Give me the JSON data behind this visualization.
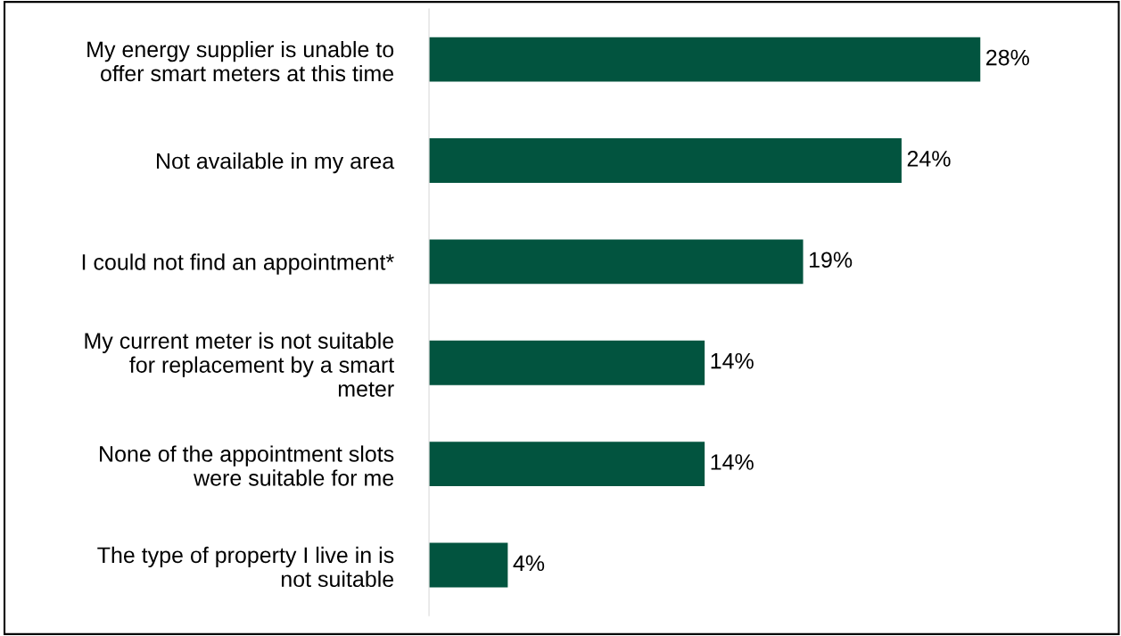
{
  "chart_data": {
    "type": "bar",
    "orientation": "horizontal",
    "categories": [
      "My energy supplier is unable to\noffer smart meters at this time",
      "Not available in my area",
      "I could not find an appointment*",
      "My current meter is not suitable\nfor replacement by a smart\nmeter",
      "None of the appointment slots\nwere suitable for me",
      "The type of property I live in is\nnot suitable"
    ],
    "values": [
      28,
      24,
      19,
      14,
      14,
      4
    ],
    "value_labels": [
      "28%",
      "24%",
      "19%",
      "14%",
      "14%",
      "4%"
    ],
    "color": "#02543f",
    "grid": false,
    "legend": false
  }
}
